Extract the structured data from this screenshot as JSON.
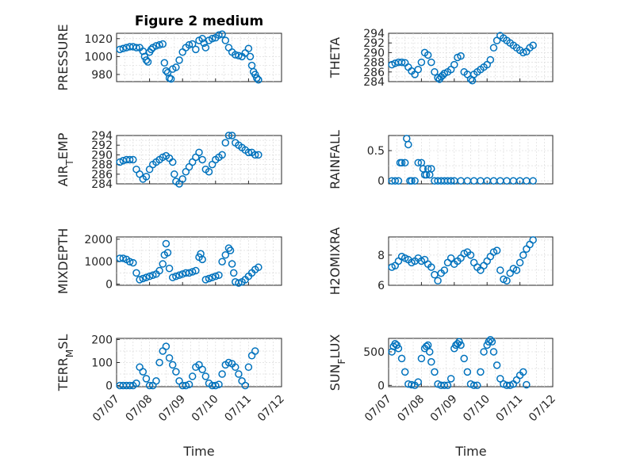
{
  "figure": {
    "title": "Figure 2 medium",
    "xlabel": "Time"
  },
  "colors": {
    "series": "#0072BD",
    "axes": "#262626",
    "grid": "#dcdcdc"
  },
  "chart_data": [
    {
      "type": "scatter",
      "ylabel": "PRESSURE",
      "ylim": [
        972,
        1026
      ],
      "yticks": [
        "980",
        "1000",
        "1020"
      ],
      "ytick_values": [
        980,
        1000,
        1020
      ],
      "xlim": [
        0,
        5
      ],
      "grid": true,
      "x": [
        0.1,
        0.2,
        0.3,
        0.4,
        0.5,
        0.6,
        0.7,
        0.8,
        0.85,
        0.9,
        0.95,
        1.0,
        1.05,
        1.1,
        1.2,
        1.3,
        1.4,
        1.45,
        1.5,
        1.55,
        1.6,
        1.65,
        1.7,
        1.8,
        1.9,
        2.0,
        2.1,
        2.2,
        2.3,
        2.4,
        2.5,
        2.6,
        2.65,
        2.7,
        2.8,
        2.9,
        3.0,
        3.1,
        3.2,
        3.3,
        3.4,
        3.5,
        3.6,
        3.7,
        3.8,
        3.9,
        4.0,
        4.05,
        4.1,
        4.15,
        4.2,
        4.25,
        4.3
      ],
      "y": [
        1008,
        1009,
        1010,
        1011,
        1011,
        1010,
        1010,
        1006,
        1000,
        996,
        994,
        1005,
        1008,
        1010,
        1012,
        1013,
        1014,
        993,
        984,
        982,
        976,
        975,
        986,
        988,
        996,
        1005,
        1010,
        1013,
        1014,
        1008,
        1018,
        1020,
        1015,
        1010,
        1018,
        1020,
        1021,
        1024,
        1025,
        1018,
        1010,
        1005,
        1002,
        1001,
        1000,
        1004,
        1009,
        1000,
        990,
        983,
        980,
        976,
        974
      ]
    },
    {
      "type": "scatter",
      "ylabel": "THETA",
      "ylim": [
        284,
        294
      ],
      "yticks": [
        "284",
        "286",
        "288",
        "290",
        "292",
        "294"
      ],
      "ytick_values": [
        284,
        286,
        288,
        290,
        292,
        294
      ],
      "xlim": [
        0,
        5
      ],
      "grid": true,
      "x": [
        0.1,
        0.2,
        0.3,
        0.4,
        0.5,
        0.6,
        0.7,
        0.8,
        0.9,
        1.0,
        1.1,
        1.2,
        1.3,
        1.4,
        1.5,
        1.55,
        1.6,
        1.65,
        1.7,
        1.8,
        1.9,
        2.0,
        2.1,
        2.2,
        2.3,
        2.4,
        2.5,
        2.55,
        2.6,
        2.7,
        2.8,
        2.9,
        3.0,
        3.1,
        3.2,
        3.3,
        3.4,
        3.5,
        3.6,
        3.7,
        3.8,
        3.9,
        4.0,
        4.1,
        4.2,
        4.3,
        4.4
      ],
      "y": [
        287.5,
        287.8,
        288,
        288,
        287.9,
        287,
        286.2,
        285.5,
        286.5,
        288,
        290,
        289.5,
        288,
        286,
        284.8,
        284.5,
        285,
        285.3,
        285.7,
        286,
        286.5,
        287.5,
        289,
        289.3,
        286,
        285.5,
        284.5,
        284.2,
        285.5,
        286,
        286.5,
        287,
        287.5,
        288.5,
        291,
        292.5,
        293.5,
        293,
        292.5,
        292,
        291.5,
        291,
        290.5,
        290,
        290.2,
        291,
        291.5
      ]
    },
    {
      "type": "scatter",
      "ylabel": "AIR_TEMP",
      "ylim": [
        284,
        294
      ],
      "yticks": [
        "284",
        "286",
        "288",
        "290",
        "292",
        "294"
      ],
      "ytick_values": [
        284,
        286,
        288,
        290,
        292,
        294
      ],
      "xlim": [
        0,
        5
      ],
      "grid": true,
      "x": [
        0.1,
        0.2,
        0.3,
        0.4,
        0.5,
        0.6,
        0.7,
        0.8,
        0.9,
        1.0,
        1.1,
        1.2,
        1.3,
        1.4,
        1.5,
        1.6,
        1.7,
        1.75,
        1.8,
        1.9,
        2.0,
        2.1,
        2.2,
        2.3,
        2.4,
        2.5,
        2.6,
        2.7,
        2.8,
        2.9,
        3.0,
        3.1,
        3.2,
        3.3,
        3.4,
        3.5,
        3.6,
        3.7,
        3.8,
        3.9,
        4.0,
        4.1,
        4.2,
        4.3
      ],
      "y": [
        288.5,
        288.8,
        289,
        289,
        289,
        287,
        286,
        285,
        285.5,
        287,
        288,
        288.5,
        289,
        289.5,
        289.8,
        289.3,
        288.5,
        286,
        284.5,
        284,
        285,
        286.5,
        287.5,
        288.5,
        289.5,
        290.5,
        289,
        287,
        286.5,
        288,
        289,
        289.5,
        290,
        292.5,
        294,
        294,
        292.5,
        292,
        291.5,
        291,
        290.5,
        290.5,
        290,
        290
      ]
    },
    {
      "type": "scatter",
      "ylabel": "RAINFALL",
      "ylim": [
        -0.05,
        0.75
      ],
      "yticks": [
        "0",
        "0.5"
      ],
      "ytick_values": [
        0,
        0.5
      ],
      "xlim": [
        0,
        5
      ],
      "grid": true,
      "x": [
        0.1,
        0.2,
        0.3,
        0.35,
        0.4,
        0.5,
        0.55,
        0.6,
        0.65,
        0.7,
        0.8,
        0.9,
        1.0,
        1.05,
        1.1,
        1.15,
        1.2,
        1.25,
        1.3,
        1.4,
        1.5,
        1.6,
        1.7,
        1.8,
        1.9,
        2.0,
        2.2,
        2.4,
        2.6,
        2.8,
        3.0,
        3.2,
        3.4,
        3.6,
        3.8,
        4.0,
        4.2,
        4.4
      ],
      "y": [
        0,
        0,
        0,
        0.3,
        0.3,
        0.3,
        0.7,
        0.6,
        0,
        0,
        0,
        0.3,
        0.3,
        0.2,
        0.1,
        0.1,
        0.2,
        0.1,
        0.2,
        0,
        0,
        0,
        0,
        0,
        0,
        0,
        0,
        0,
        0,
        0,
        0,
        0,
        0,
        0,
        0,
        0,
        0,
        0
      ]
    },
    {
      "type": "scatter",
      "ylabel": "MIXDEPTH",
      "ylim": [
        -50,
        2100
      ],
      "yticks": [
        "0",
        "1000",
        "2000"
      ],
      "ytick_values": [
        0,
        1000,
        2000
      ],
      "xlim": [
        0,
        5
      ],
      "grid": true,
      "x": [
        0.1,
        0.2,
        0.3,
        0.4,
        0.5,
        0.6,
        0.7,
        0.8,
        0.9,
        1.0,
        1.1,
        1.2,
        1.3,
        1.4,
        1.45,
        1.5,
        1.55,
        1.6,
        1.7,
        1.8,
        1.9,
        2.0,
        2.1,
        2.2,
        2.3,
        2.4,
        2.5,
        2.55,
        2.6,
        2.7,
        2.8,
        2.9,
        3.0,
        3.1,
        3.2,
        3.3,
        3.4,
        3.45,
        3.5,
        3.55,
        3.6,
        3.7,
        3.8,
        3.9,
        4.0,
        4.1,
        4.2,
        4.3
      ],
      "y": [
        1150,
        1150,
        1100,
        1000,
        950,
        500,
        200,
        250,
        300,
        350,
        400,
        450,
        600,
        900,
        1300,
        1800,
        1400,
        700,
        300,
        350,
        400,
        450,
        500,
        500,
        550,
        600,
        1200,
        1350,
        1100,
        200,
        250,
        300,
        350,
        400,
        1000,
        1300,
        1600,
        1500,
        900,
        500,
        100,
        50,
        100,
        200,
        350,
        500,
        650,
        750
      ]
    },
    {
      "type": "scatter",
      "ylabel": "H2OMIXRA",
      "ylim": [
        6,
        9.2
      ],
      "yticks": [
        "6",
        "8"
      ],
      "ytick_values": [
        6,
        8
      ],
      "xlim": [
        0,
        5
      ],
      "grid": true,
      "x": [
        0.1,
        0.2,
        0.3,
        0.4,
        0.5,
        0.6,
        0.7,
        0.8,
        0.9,
        1.0,
        1.1,
        1.2,
        1.3,
        1.4,
        1.5,
        1.6,
        1.7,
        1.8,
        1.9,
        2.0,
        2.1,
        2.2,
        2.3,
        2.4,
        2.5,
        2.6,
        2.7,
        2.8,
        2.9,
        3.0,
        3.1,
        3.2,
        3.3,
        3.4,
        3.5,
        3.6,
        3.7,
        3.8,
        3.9,
        4.0,
        4.1,
        4.2,
        4.3,
        4.4
      ],
      "y": [
        7.2,
        7.3,
        7.6,
        7.9,
        7.8,
        7.7,
        7.5,
        7.6,
        7.8,
        7.6,
        7.7,
        7.4,
        7.2,
        6.7,
        6.3,
        6.8,
        7.0,
        7.5,
        7.8,
        7.4,
        7.6,
        7.8,
        8.1,
        8.2,
        8.0,
        7.5,
        7.2,
        7.0,
        7.3,
        7.6,
        7.9,
        8.2,
        8.3,
        7.0,
        6.4,
        6.3,
        6.8,
        7.1,
        7.0,
        7.5,
        8.0,
        8.4,
        8.7,
        9.0
      ]
    },
    {
      "type": "scatter",
      "ylabel": "TERR_MSL",
      "ylim": [
        -5,
        205
      ],
      "yticks": [
        "0",
        "100",
        "200"
      ],
      "ytick_values": [
        0,
        100,
        200
      ],
      "xlim": [
        0,
        5
      ],
      "grid": true,
      "x": [
        0.1,
        0.2,
        0.3,
        0.4,
        0.5,
        0.6,
        0.7,
        0.8,
        0.9,
        1.0,
        1.1,
        1.2,
        1.3,
        1.4,
        1.5,
        1.6,
        1.7,
        1.8,
        1.9,
        2.0,
        2.1,
        2.2,
        2.3,
        2.4,
        2.5,
        2.6,
        2.7,
        2.8,
        2.9,
        3.0,
        3.1,
        3.2,
        3.3,
        3.4,
        3.5,
        3.6,
        3.7,
        3.8,
        3.9,
        4.0,
        4.1,
        4.2
      ],
      "y": [
        0,
        0,
        0,
        0,
        0,
        10,
        80,
        60,
        30,
        0,
        0,
        20,
        100,
        150,
        170,
        120,
        90,
        60,
        20,
        0,
        0,
        5,
        40,
        80,
        90,
        70,
        40,
        10,
        0,
        0,
        5,
        50,
        90,
        100,
        95,
        80,
        50,
        20,
        0,
        80,
        130,
        150
      ]
    },
    {
      "type": "scatter",
      "ylabel": "SUN_FLUX",
      "ylim": [
        -20,
        700
      ],
      "yticks": [
        "0",
        "500"
      ],
      "ytick_values": [
        0,
        500
      ],
      "xlim": [
        0,
        5
      ],
      "grid": true,
      "xtick_labels": [
        "07/07",
        "07/08",
        "07/09",
        "07/10",
        "07/11",
        "07/12"
      ],
      "x": [
        0.1,
        0.15,
        0.2,
        0.25,
        0.3,
        0.4,
        0.5,
        0.6,
        0.7,
        0.8,
        0.9,
        1.0,
        1.1,
        1.15,
        1.2,
        1.25,
        1.3,
        1.4,
        1.5,
        1.6,
        1.7,
        1.8,
        1.9,
        2.0,
        2.05,
        2.1,
        2.15,
        2.2,
        2.3,
        2.4,
        2.5,
        2.6,
        2.7,
        2.8,
        2.9,
        3.0,
        3.05,
        3.1,
        3.15,
        3.2,
        3.3,
        3.4,
        3.5,
        3.6,
        3.7,
        3.8,
        3.9,
        4.0,
        4.1,
        4.2
      ],
      "y": [
        500,
        580,
        620,
        600,
        550,
        400,
        200,
        20,
        10,
        0,
        50,
        400,
        550,
        580,
        600,
        500,
        350,
        200,
        20,
        0,
        0,
        0,
        100,
        550,
        600,
        620,
        650,
        600,
        400,
        200,
        20,
        0,
        0,
        200,
        500,
        600,
        650,
        680,
        650,
        500,
        300,
        100,
        20,
        0,
        0,
        20,
        80,
        150,
        200,
        10
      ]
    }
  ]
}
